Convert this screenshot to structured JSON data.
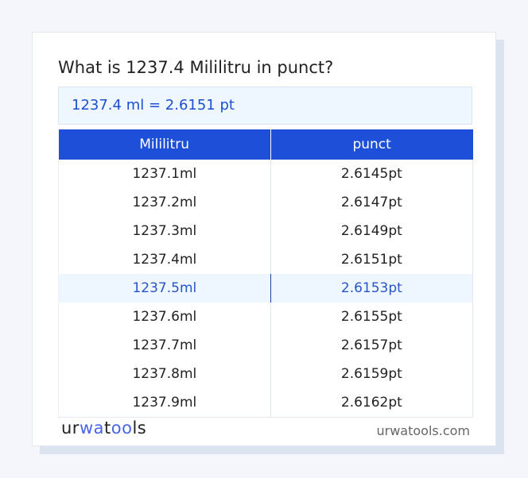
{
  "title": "What is 1237.4 Mililitru in punct?",
  "result": "1237.4 ml = 2.6151 pt",
  "table": {
    "headers": [
      "Mililitru",
      "punct"
    ],
    "rows": [
      [
        "1237.1ml",
        "2.6145pt"
      ],
      [
        "1237.2ml",
        "2.6147pt"
      ],
      [
        "1237.3ml",
        "2.6149pt"
      ],
      [
        "1237.4ml",
        "2.6151pt"
      ],
      [
        "1237.5ml",
        "2.6153pt"
      ],
      [
        "1237.6ml",
        "2.6155pt"
      ],
      [
        "1237.7ml",
        "2.6157pt"
      ],
      [
        "1237.8ml",
        "2.6159pt"
      ],
      [
        "1237.9ml",
        "2.6162pt"
      ]
    ],
    "highlighted_row": 4
  },
  "footer": {
    "logo": "urwatools",
    "logo_parts": [
      "ur",
      "wa",
      "t",
      "oo",
      "ls"
    ],
    "site": "urwatools.com"
  },
  "colors": {
    "accent": "#1d4fd8",
    "highlight_bg": "#eef6ff"
  }
}
